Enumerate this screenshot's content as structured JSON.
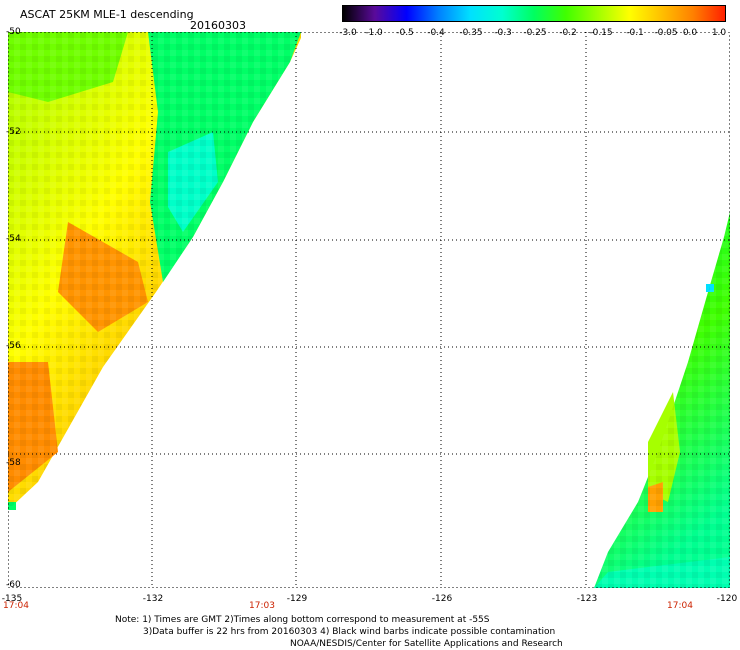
{
  "header": {
    "title": "ASCAT 25KM MLE-1 descending",
    "date": "20160303"
  },
  "colorbar": {
    "labels": [
      "-3.0",
      "-1.0",
      "-0.5",
      "-0.4",
      "-0.35",
      "-0.3",
      "-0.25",
      "-0.2",
      "-0.15",
      "-0.1",
      "-0.05",
      "0.0",
      "1.0"
    ],
    "colors": [
      "#000000",
      "#5a0a9a",
      "#0000ff",
      "#0080ff",
      "#00e0ff",
      "#00ffd0",
      "#00ff60",
      "#40ff00",
      "#a0ff00",
      "#ffff00",
      "#ffc000",
      "#ff8000",
      "#ff2000"
    ]
  },
  "axes": {
    "lat_labels": [
      "-50",
      "-52",
      "-54",
      "-56",
      "-58",
      "-60"
    ],
    "lon_labels": [
      "-135",
      "-132",
      "-129",
      "-126",
      "-123",
      "-120"
    ],
    "time_labels": [
      "17:04",
      "17:03",
      "17:04"
    ]
  },
  "notes": {
    "line1": "Note: 1) Times are GMT 2)Times along bottom correspond to measurement at -55S",
    "line2": "3)Data buffer is 22 hrs from 20160303 4) Black wind barbs indicate possible contamination",
    "line3": "NOAA/NESDIS/Center for Satellite Applications and Research"
  }
}
